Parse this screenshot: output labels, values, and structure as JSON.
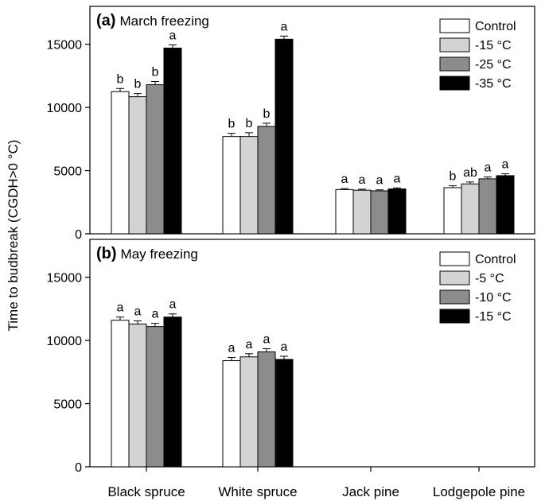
{
  "figure": {
    "ylabel": "Time to budbreak (CGDH>0 °C)",
    "categories": [
      "Black spruce",
      "White spruce",
      "Jack pine",
      "Lodgepole pine"
    ]
  },
  "chart_data": [
    {
      "type": "bar",
      "panel_letter": "(a)",
      "panel_title": "March freezing",
      "categories": [
        "Black spruce",
        "White spruce",
        "Jack pine",
        "Lodgepole pine"
      ],
      "ylim": [
        0,
        18000
      ],
      "yticks": [
        0,
        5000,
        10000,
        15000
      ],
      "legend_position": "top-right",
      "series": [
        {
          "name": "Control",
          "color": "#ffffff",
          "values": [
            11250,
            7700,
            3500,
            3650
          ],
          "errors": [
            250,
            250,
            80,
            150
          ],
          "labels": [
            "b",
            "b",
            "a",
            "b"
          ]
        },
        {
          "name": "-15 °C",
          "color": "#d3d3d3",
          "values": [
            10850,
            7700,
            3450,
            3950
          ],
          "errors": [
            250,
            300,
            80,
            150
          ],
          "labels": [
            "b",
            "b",
            "a",
            "ab"
          ]
        },
        {
          "name": "-25 °C",
          "color": "#8c8c8c",
          "values": [
            11800,
            8500,
            3400,
            4350
          ],
          "errors": [
            250,
            250,
            80,
            150
          ],
          "labels": [
            "b",
            "b",
            "a",
            "a"
          ]
        },
        {
          "name": "-35 °C",
          "color": "#000000",
          "values": [
            14700,
            15400,
            3550,
            4600
          ],
          "errors": [
            250,
            250,
            80,
            150
          ],
          "labels": [
            "a",
            "a",
            "a",
            "a"
          ]
        }
      ]
    },
    {
      "type": "bar",
      "panel_letter": "(b)",
      "panel_title": "May freezing",
      "categories": [
        "Black spruce",
        "White spruce",
        "Jack pine",
        "Lodgepole pine"
      ],
      "ylim": [
        0,
        18000
      ],
      "yticks": [
        0,
        5000,
        10000,
        15000
      ],
      "legend_position": "top-right",
      "series": [
        {
          "name": "Control",
          "color": "#ffffff",
          "values": [
            11600,
            8400,
            null,
            null
          ],
          "errors": [
            250,
            250,
            null,
            null
          ],
          "labels": [
            "a",
            "a",
            "",
            ""
          ]
        },
        {
          "name": "-5 °C",
          "color": "#d3d3d3",
          "values": [
            11300,
            8700,
            null,
            null
          ],
          "errors": [
            250,
            250,
            null,
            null
          ],
          "labels": [
            "a",
            "a",
            "",
            ""
          ]
        },
        {
          "name": "-10 °C",
          "color": "#8c8c8c",
          "values": [
            11100,
            9100,
            null,
            null
          ],
          "errors": [
            250,
            250,
            null,
            null
          ],
          "labels": [
            "a",
            "a",
            "",
            ""
          ]
        },
        {
          "name": "-15 °C",
          "color": "#000000",
          "values": [
            11850,
            8500,
            null,
            null
          ],
          "errors": [
            250,
            250,
            null,
            null
          ],
          "labels": [
            "a",
            "a",
            "",
            ""
          ]
        }
      ]
    }
  ]
}
